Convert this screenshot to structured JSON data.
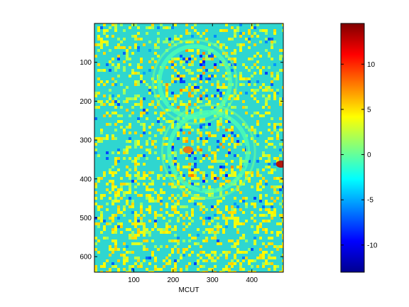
{
  "chart_data": {
    "type": "heatmap",
    "title": "",
    "xlabel": "MCUT",
    "ylabel": "",
    "xlim": [
      0,
      480
    ],
    "ylim": [
      640,
      0
    ],
    "x_ticks": [
      "100",
      "200",
      "300",
      "400"
    ],
    "y_ticks": [
      "100",
      "200",
      "300",
      "400",
      "500",
      "600"
    ],
    "colormap": "jet",
    "colorbar": {
      "range": [
        -13,
        14.5
      ],
      "ticks": [
        "-10",
        "-5",
        "0",
        "5",
        "10"
      ]
    },
    "background_level": -1.5,
    "features": [
      {
        "type": "disk",
        "center": [
          255,
          150
        ],
        "radius": 90,
        "level": 0
      },
      {
        "type": "disk",
        "center": [
          290,
          330
        ],
        "radius": 100,
        "level": 0
      },
      {
        "type": "hotspot",
        "center": [
          238,
          325
        ],
        "level": 8
      },
      {
        "type": "hotspot",
        "center": [
          474,
          362
        ],
        "level": 13
      }
    ]
  }
}
